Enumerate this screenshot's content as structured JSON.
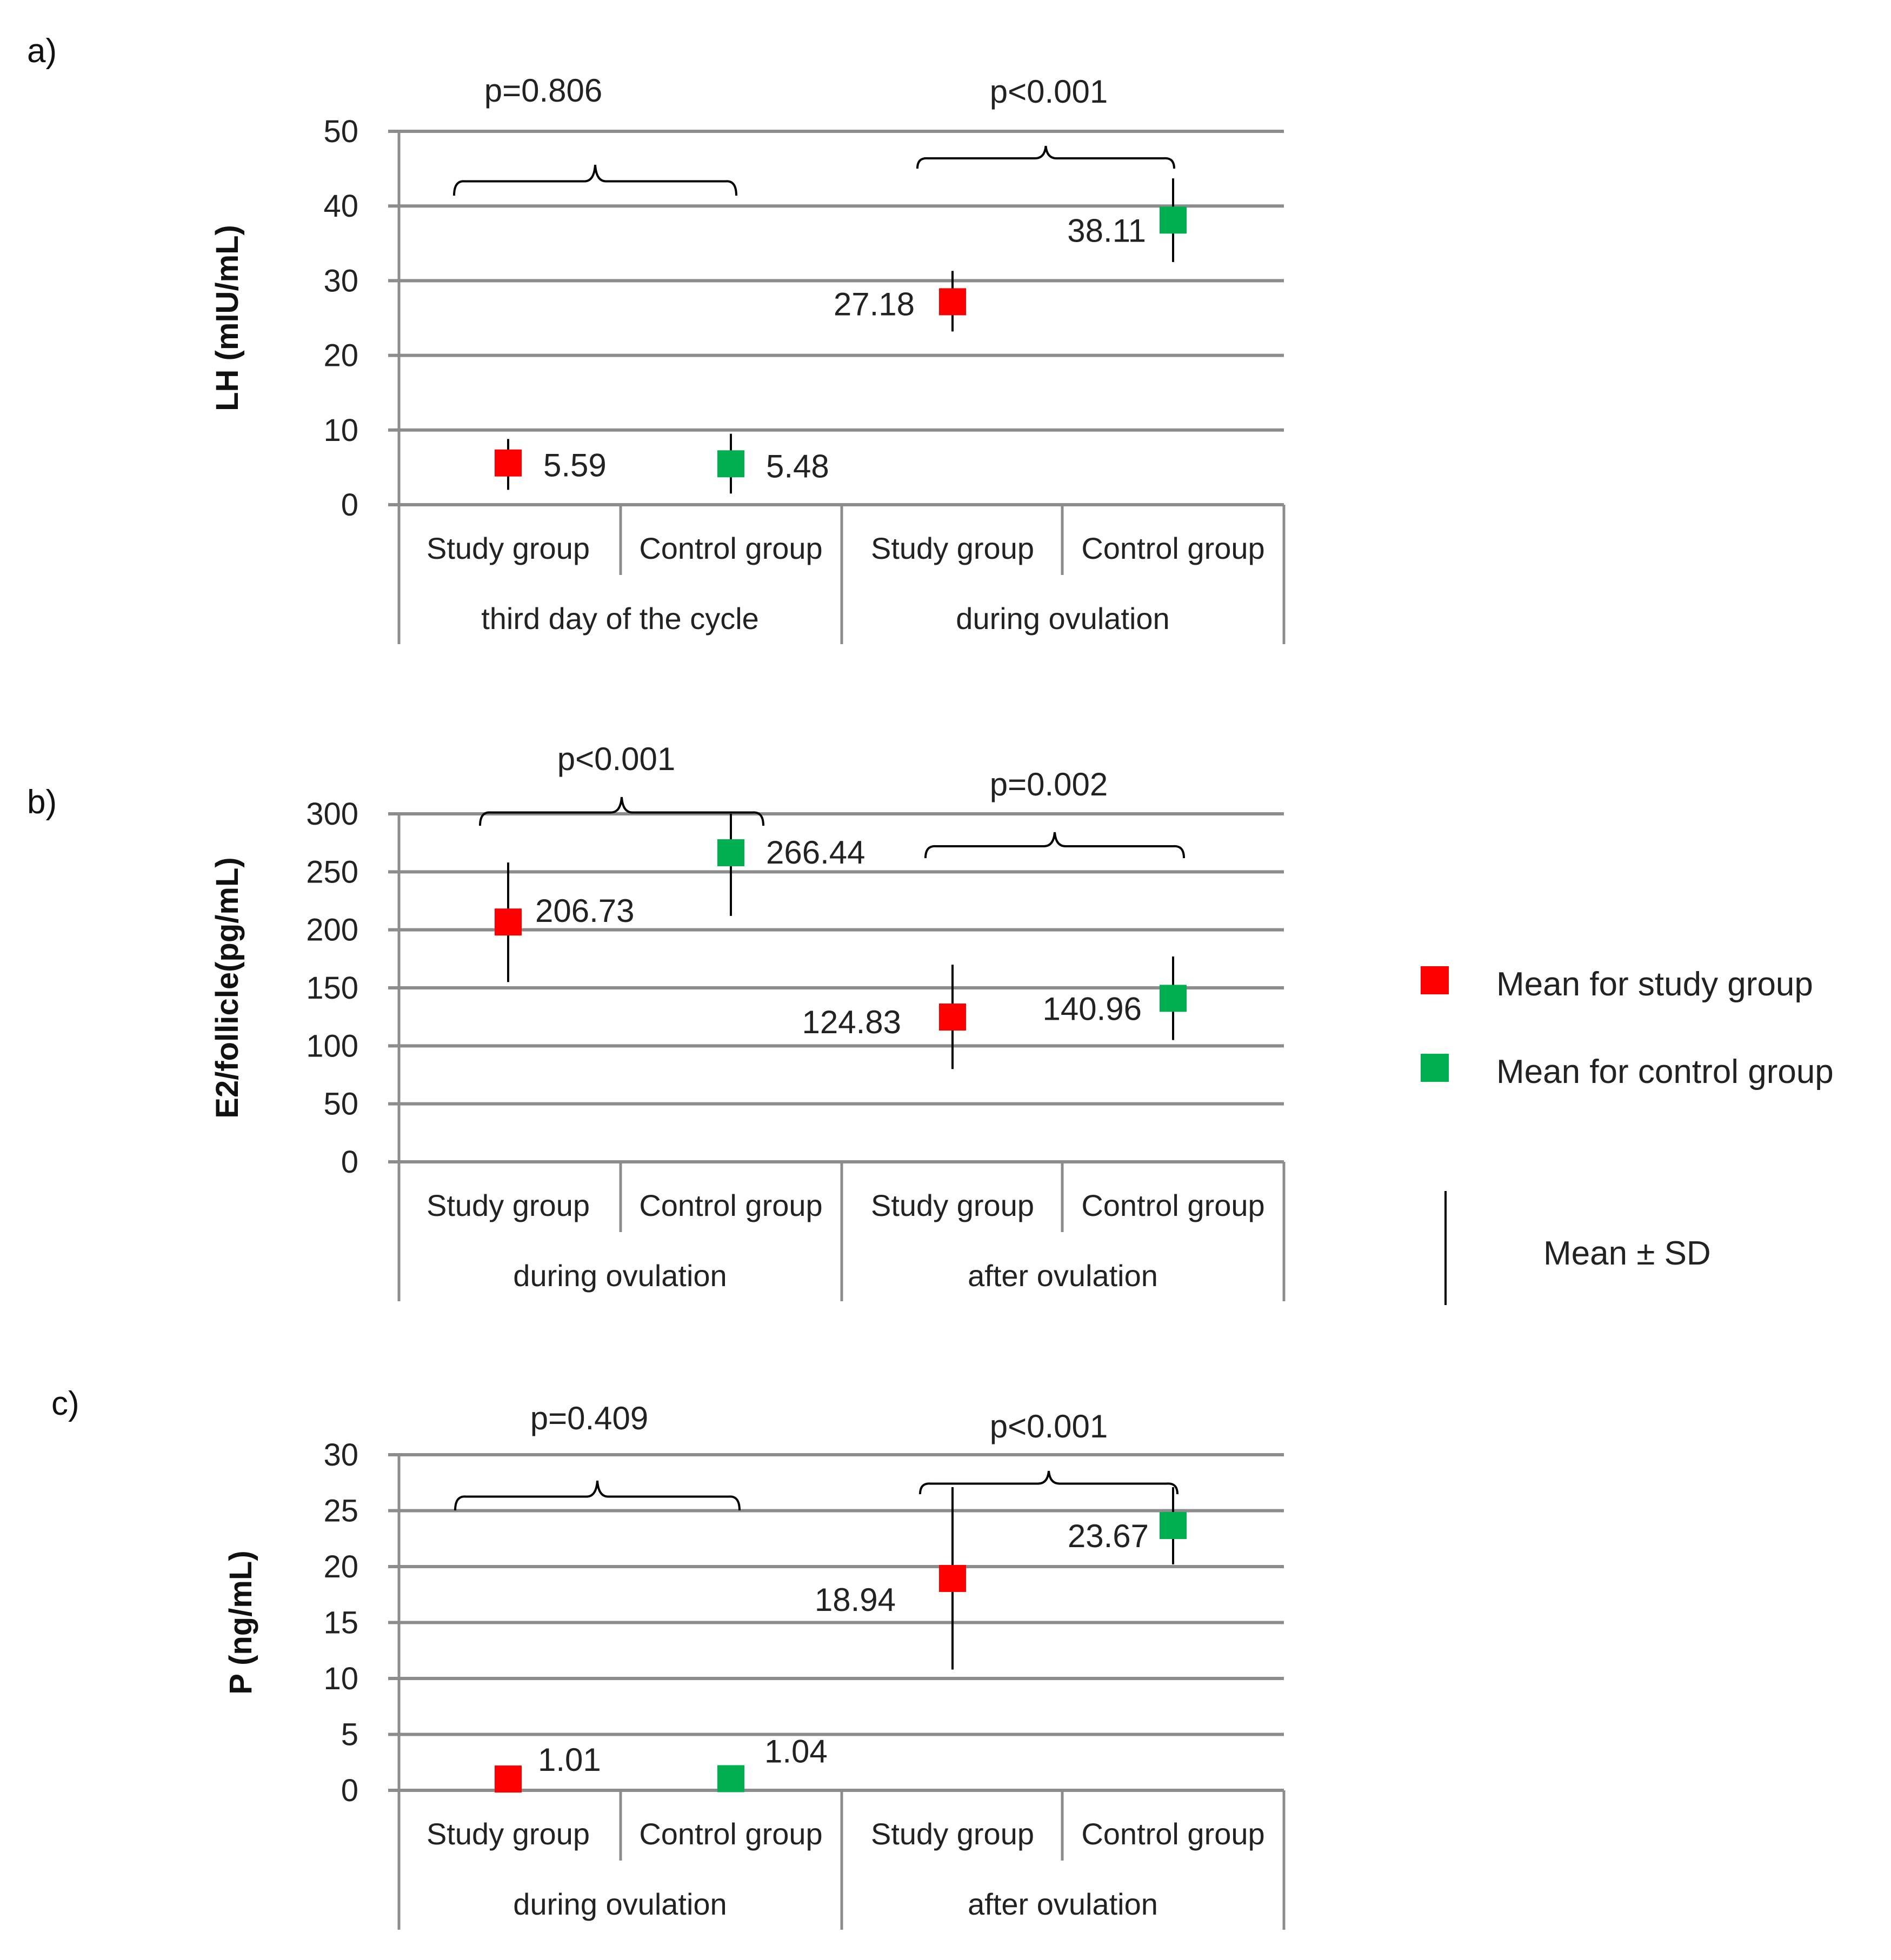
{
  "colors": {
    "study": "#ff0000",
    "control": "#00b050",
    "grid": "#8c8c8c"
  },
  "legend": {
    "study_label": "Mean for study group",
    "control_label": "Mean for control group",
    "sd_label": "Mean ± SD"
  },
  "chart_data": [
    {
      "type": "scatter",
      "panel": "a)",
      "ylabel": "LH (mIU/mL)",
      "ylim": [
        0,
        50
      ],
      "yticks": [
        0,
        10,
        20,
        30,
        40,
        50
      ],
      "groups": [
        "third day of the cycle",
        "during ovulation"
      ],
      "categories": [
        "Study group",
        "Control group",
        "Study group",
        "Control group"
      ],
      "series": [
        {
          "name": "Mean for study group",
          "points": [
            {
              "x": 0,
              "value": 5.59,
              "label": "5.59",
              "err_low": 2.0,
              "err_high": 8.8
            },
            {
              "x": 2,
              "value": 27.18,
              "label": "27.18",
              "err_low": 23.2,
              "err_high": 31.3
            }
          ]
        },
        {
          "name": "Mean for control group",
          "points": [
            {
              "x": 1,
              "value": 5.48,
              "label": "5.48",
              "err_low": 1.5,
              "err_high": 9.5
            },
            {
              "x": 3,
              "value": 38.11,
              "label": "38.11",
              "err_low": 32.5,
              "err_high": 43.7
            }
          ]
        }
      ],
      "pvalues": [
        {
          "text": "p=0.806",
          "from": 0,
          "to": 1
        },
        {
          "text": "p<0.001",
          "from": 2,
          "to": 3
        }
      ]
    },
    {
      "type": "scatter",
      "panel": "b)",
      "ylabel": "E2/follicle(pg/mL)",
      "ylim": [
        0,
        300
      ],
      "yticks": [
        0,
        50,
        100,
        150,
        200,
        250,
        300
      ],
      "groups": [
        "during ovulation",
        "after ovulation"
      ],
      "categories": [
        "Study group",
        "Control group",
        "Study group",
        "Control group"
      ],
      "series": [
        {
          "name": "Mean for study group",
          "points": [
            {
              "x": 0,
              "value": 206.73,
              "label": "206.73",
              "err_low": 155,
              "err_high": 258
            },
            {
              "x": 2,
              "value": 124.83,
              "label": "124.83",
              "err_low": 80,
              "err_high": 170
            }
          ]
        },
        {
          "name": "Mean for control group",
          "points": [
            {
              "x": 1,
              "value": 266.44,
              "label": "266.44",
              "err_low": 212,
              "err_high": 300
            },
            {
              "x": 3,
              "value": 140.96,
              "label": "140.96",
              "err_low": 105,
              "err_high": 177
            }
          ]
        }
      ],
      "pvalues": [
        {
          "text": "p<0.001",
          "from": 0,
          "to": 1
        },
        {
          "text": "p=0.002",
          "from": 2,
          "to": 3
        }
      ]
    },
    {
      "type": "scatter",
      "panel": "c)",
      "ylabel": "P (ng/mL)",
      "ylim": [
        0,
        30
      ],
      "yticks": [
        0,
        5,
        10,
        15,
        20,
        25,
        30
      ],
      "groups": [
        "during ovulation",
        "after ovulation"
      ],
      "categories": [
        "Study group",
        "Control group",
        "Study group",
        "Control group"
      ],
      "series": [
        {
          "name": "Mean for study group",
          "points": [
            {
              "x": 0,
              "value": 1.01,
              "label": "1.01",
              "err_low": 1.01,
              "err_high": 1.01
            },
            {
              "x": 2,
              "value": 18.94,
              "label": "18.94",
              "err_low": 10.8,
              "err_high": 27.1
            }
          ]
        },
        {
          "name": "Mean for control group",
          "points": [
            {
              "x": 1,
              "value": 1.04,
              "label": "1.04",
              "err_low": 1.04,
              "err_high": 1.04
            },
            {
              "x": 3,
              "value": 23.67,
              "label": "23.67",
              "err_low": 20.2,
              "err_high": 27.1
            }
          ]
        }
      ],
      "pvalues": [
        {
          "text": "p=0.409",
          "from": 0,
          "to": 1
        },
        {
          "text": "p<0.001",
          "from": 2,
          "to": 3
        }
      ]
    }
  ]
}
